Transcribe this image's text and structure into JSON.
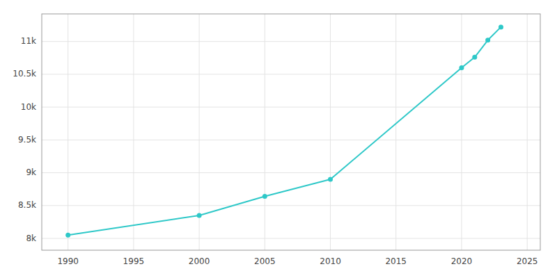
{
  "chart_data": {
    "type": "line",
    "x": [
      1990,
      2000,
      2005,
      2010,
      2020,
      2021,
      2022,
      2023
    ],
    "values": [
      8050,
      8350,
      8640,
      8900,
      10600,
      10760,
      11020,
      11220
    ],
    "color": "#2ec8c8",
    "marker": "circle",
    "xlim": [
      1988,
      2026
    ],
    "ylim": [
      7820,
      11420
    ],
    "xticks": [
      1990,
      1995,
      2000,
      2005,
      2010,
      2015,
      2020,
      2025
    ],
    "yticks": [
      {
        "value": 8000,
        "label": "8k"
      },
      {
        "value": 8500,
        "label": "8.5k"
      },
      {
        "value": 9000,
        "label": "9k"
      },
      {
        "value": 9500,
        "label": "9.5k"
      },
      {
        "value": 10000,
        "label": "10k"
      },
      {
        "value": 10500,
        "label": "10.5k"
      },
      {
        "value": 11000,
        "label": "11k"
      }
    ],
    "grid": true
  }
}
